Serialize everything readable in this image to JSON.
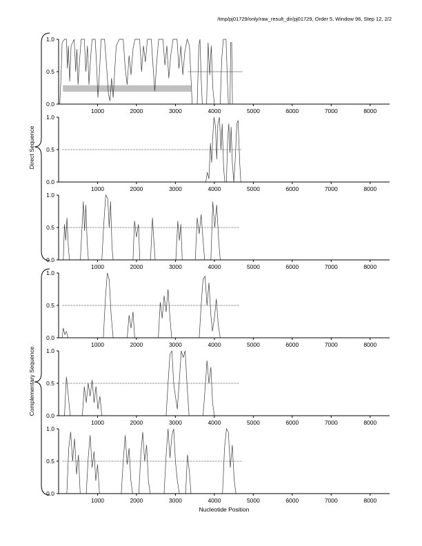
{
  "title": "/tmp/pj01729/only/raw_result_dir/pj01729, Order 5, Window 96, Step 12, 2/2",
  "xlabel": "Nucleotide Position",
  "group_labels": {
    "direct": "Direct Sequence",
    "complementary": "Complementary Sequence"
  },
  "colors": {
    "line": "#3a3a3a",
    "marker": "#9a9a9a",
    "shade": "#c0c0c0",
    "axis": "#000000"
  },
  "xticks": [
    1000,
    2000,
    3000,
    4000,
    5000,
    6000,
    7000,
    8000
  ],
  "ytick_labels": [
    {
      "v": 0.0,
      "l": "0.0"
    },
    {
      "v": 0.5,
      "l": "0.5"
    },
    {
      "v": 1.0,
      "l": "1.0"
    }
  ],
  "chart_data": [
    {
      "type": "line",
      "name": "direct-1",
      "xlim": [
        0,
        8500
      ],
      "ylim": [
        0,
        1
      ],
      "marker_step": 45,
      "marker_ranges": [
        [
          3350,
          4700
        ]
      ],
      "shaded_region": {
        "x0": 110,
        "x1": 3400,
        "y0": 0.19,
        "y1": 0.29
      },
      "points": [
        [
          30,
          0
        ],
        [
          60,
          0.4
        ],
        [
          90,
          0.95
        ],
        [
          150,
          1
        ],
        [
          200,
          1
        ],
        [
          225,
          0.55
        ],
        [
          250,
          0.9
        ],
        [
          285,
          0.35
        ],
        [
          320,
          0.9
        ],
        [
          400,
          1
        ],
        [
          440,
          0.5
        ],
        [
          470,
          0.85
        ],
        [
          500,
          0.3
        ],
        [
          540,
          0.7
        ],
        [
          580,
          1
        ],
        [
          660,
          1
        ],
        [
          700,
          0.5
        ],
        [
          740,
          0.9
        ],
        [
          780,
          0.3
        ],
        [
          820,
          0.7
        ],
        [
          860,
          1
        ],
        [
          940,
          1
        ],
        [
          980,
          0.55
        ],
        [
          1010,
          0.1
        ],
        [
          1050,
          0.5
        ],
        [
          1090,
          1
        ],
        [
          1180,
          1
        ],
        [
          1230,
          0.6
        ],
        [
          1280,
          0.15
        ],
        [
          1320,
          0.05
        ],
        [
          1360,
          0.4
        ],
        [
          1400,
          0.1
        ],
        [
          1440,
          0.5
        ],
        [
          1480,
          0.9
        ],
        [
          1560,
          1
        ],
        [
          1660,
          1
        ],
        [
          1710,
          0.55
        ],
        [
          1760,
          0.3
        ],
        [
          1810,
          0.75
        ],
        [
          1860,
          0.45
        ],
        [
          1910,
          0.85
        ],
        [
          1960,
          1
        ],
        [
          2080,
          1
        ],
        [
          2130,
          0.5
        ],
        [
          2180,
          0.9
        ],
        [
          2230,
          0.65
        ],
        [
          2280,
          1
        ],
        [
          2380,
          1
        ],
        [
          2430,
          0.55
        ],
        [
          2470,
          0.2
        ],
        [
          2520,
          0.65
        ],
        [
          2570,
          1
        ],
        [
          2680,
          1
        ],
        [
          2730,
          0.6
        ],
        [
          2780,
          0.9
        ],
        [
          2830,
          0.4
        ],
        [
          2880,
          0.75
        ],
        [
          2940,
          1
        ],
        [
          3040,
          1
        ],
        [
          3090,
          0.55
        ],
        [
          3140,
          0.9
        ],
        [
          3190,
          0.45
        ],
        [
          3240,
          0.8
        ],
        [
          3300,
          1
        ],
        [
          3360,
          0.9
        ],
        [
          3400,
          0.4
        ],
        [
          3430,
          0
        ],
        [
          3560,
          0
        ],
        [
          3600,
          0.9
        ],
        [
          3630,
          1
        ],
        [
          3660,
          0.4
        ],
        [
          3690,
          0
        ],
        [
          3800,
          0
        ],
        [
          3840,
          0.95
        ],
        [
          3880,
          0.45
        ],
        [
          3920,
          0.9
        ],
        [
          3960,
          0.25
        ],
        [
          4000,
          0
        ],
        [
          4150,
          0
        ],
        [
          4190,
          0.7
        ],
        [
          4230,
          1
        ],
        [
          4300,
          1
        ],
        [
          4330,
          0.45
        ],
        [
          4360,
          0
        ],
        [
          4400,
          0
        ],
        [
          4420,
          0.95
        ],
        [
          4445,
          0.95
        ],
        [
          4465,
          0
        ],
        [
          8500,
          0
        ]
      ]
    },
    {
      "type": "line",
      "name": "direct-2",
      "xlim": [
        0,
        8500
      ],
      "ylim": [
        0,
        1
      ],
      "marker_step": 70,
      "marker_ranges": [
        [
          120,
          4700
        ]
      ],
      "points": [
        [
          0,
          0
        ],
        [
          3780,
          0
        ],
        [
          3820,
          0.15
        ],
        [
          3860,
          0.05
        ],
        [
          3900,
          0.6
        ],
        [
          3930,
          0.3
        ],
        [
          3960,
          0.7
        ],
        [
          3990,
          1
        ],
        [
          4030,
          0.85
        ],
        [
          4060,
          0.35
        ],
        [
          4090,
          0.9
        ],
        [
          4130,
          1
        ],
        [
          4170,
          0.5
        ],
        [
          4200,
          0.9
        ],
        [
          4240,
          0.2
        ],
        [
          4270,
          0
        ],
        [
          4310,
          0
        ],
        [
          4340,
          0.65
        ],
        [
          4370,
          0.9
        ],
        [
          4400,
          0.45
        ],
        [
          4430,
          0.85
        ],
        [
          4460,
          0.3
        ],
        [
          4500,
          0
        ],
        [
          4540,
          0.4
        ],
        [
          4575,
          0.9
        ],
        [
          4610,
          0.95
        ],
        [
          4650,
          0.3
        ],
        [
          4680,
          0
        ],
        [
          8500,
          0
        ]
      ]
    },
    {
      "type": "line",
      "name": "direct-3",
      "xlim": [
        0,
        8500
      ],
      "ylim": [
        0,
        1
      ],
      "marker_step": 70,
      "marker_ranges": [
        [
          120,
          4650
        ]
      ],
      "points": [
        [
          0,
          0
        ],
        [
          120,
          0
        ],
        [
          150,
          0.55
        ],
        [
          185,
          0.3
        ],
        [
          215,
          0.65
        ],
        [
          250,
          0.2
        ],
        [
          280,
          0
        ],
        [
          560,
          0
        ],
        [
          600,
          0.5
        ],
        [
          635,
          0.9
        ],
        [
          665,
          0.45
        ],
        [
          700,
          0.85
        ],
        [
          735,
          0.25
        ],
        [
          765,
          0
        ],
        [
          1110,
          0
        ],
        [
          1160,
          0.55
        ],
        [
          1210,
          1
        ],
        [
          1260,
          0.95
        ],
        [
          1300,
          0.5
        ],
        [
          1335,
          0.9
        ],
        [
          1370,
          0.2
        ],
        [
          1400,
          0
        ],
        [
          1910,
          0
        ],
        [
          1950,
          0.6
        ],
        [
          2000,
          0.35
        ],
        [
          2050,
          0.55
        ],
        [
          2085,
          0
        ],
        [
          2360,
          0
        ],
        [
          2410,
          0.65
        ],
        [
          2445,
          0.3
        ],
        [
          2480,
          0
        ],
        [
          3010,
          0
        ],
        [
          3060,
          0.6
        ],
        [
          3100,
          0.3
        ],
        [
          3140,
          0.55
        ],
        [
          3175,
          0
        ],
        [
          3510,
          0
        ],
        [
          3560,
          0.65
        ],
        [
          3610,
          0.4
        ],
        [
          3660,
          0.7
        ],
        [
          3710,
          0.3
        ],
        [
          3750,
          0
        ],
        [
          3910,
          0
        ],
        [
          3960,
          0.9
        ],
        [
          4010,
          0.5
        ],
        [
          4060,
          0.85
        ],
        [
          4110,
          0.3
        ],
        [
          4150,
          0
        ],
        [
          8500,
          0
        ]
      ]
    },
    {
      "type": "line",
      "name": "complementary-1",
      "xlim": [
        0,
        8500
      ],
      "ylim": [
        0,
        1
      ],
      "marker_step": 70,
      "marker_ranges": [
        [
          120,
          4600
        ]
      ],
      "points": [
        [
          0,
          0
        ],
        [
          90,
          0
        ],
        [
          120,
          0.15
        ],
        [
          160,
          0.05
        ],
        [
          200,
          0.1
        ],
        [
          240,
          0
        ],
        [
          1150,
          0
        ],
        [
          1200,
          0.6
        ],
        [
          1250,
          1
        ],
        [
          1300,
          0.9
        ],
        [
          1350,
          0.35
        ],
        [
          1400,
          0
        ],
        [
          1760,
          0
        ],
        [
          1810,
          0.35
        ],
        [
          1860,
          0.15
        ],
        [
          1910,
          0.4
        ],
        [
          1955,
          0
        ],
        [
          2560,
          0
        ],
        [
          2610,
          0.55
        ],
        [
          2660,
          0.3
        ],
        [
          2710,
          0.65
        ],
        [
          2760,
          0.4
        ],
        [
          2810,
          0.75
        ],
        [
          2860,
          0.3
        ],
        [
          2905,
          0
        ],
        [
          3610,
          0
        ],
        [
          3660,
          0.5
        ],
        [
          3710,
          0.9
        ],
        [
          3760,
          0.95
        ],
        [
          3810,
          0.5
        ],
        [
          3860,
          0.85
        ],
        [
          3910,
          0.35
        ],
        [
          3950,
          0.1
        ],
        [
          4000,
          0.3
        ],
        [
          4050,
          0.6
        ],
        [
          4100,
          0.2
        ],
        [
          4150,
          0
        ],
        [
          8500,
          0
        ]
      ]
    },
    {
      "type": "line",
      "name": "complementary-2",
      "xlim": [
        0,
        8500
      ],
      "ylim": [
        0,
        1
      ],
      "marker_step": 70,
      "marker_ranges": [
        [
          120,
          4650
        ]
      ],
      "points": [
        [
          0,
          0
        ],
        [
          150,
          0
        ],
        [
          200,
          0.6
        ],
        [
          250,
          0.3
        ],
        [
          300,
          0
        ],
        [
          610,
          0
        ],
        [
          660,
          0.45
        ],
        [
          710,
          0.2
        ],
        [
          760,
          0.5
        ],
        [
          810,
          0.3
        ],
        [
          860,
          0.55
        ],
        [
          910,
          0.2
        ],
        [
          960,
          0.45
        ],
        [
          1010,
          0.1
        ],
        [
          1060,
          0.3
        ],
        [
          1110,
          0
        ],
        [
          2760,
          0
        ],
        [
          2810,
          0.5
        ],
        [
          2860,
          0.95
        ],
        [
          2910,
          1
        ],
        [
          2955,
          0.5
        ],
        [
          3000,
          0.3
        ],
        [
          3050,
          0.1
        ],
        [
          3100,
          0.55
        ],
        [
          3150,
          1
        ],
        [
          3200,
          0.9
        ],
        [
          3250,
          1
        ],
        [
          3300,
          0.45
        ],
        [
          3350,
          0
        ],
        [
          3710,
          0
        ],
        [
          3760,
          0.4
        ],
        [
          3810,
          0.85
        ],
        [
          3860,
          0.5
        ],
        [
          3910,
          0.75
        ],
        [
          3955,
          0.2
        ],
        [
          4000,
          0
        ],
        [
          8500,
          0
        ]
      ]
    },
    {
      "type": "line",
      "name": "complementary-3",
      "xlim": [
        0,
        8500
      ],
      "ylim": [
        0,
        1
      ],
      "marker_step": 70,
      "marker_ranges": [
        [
          120,
          4700
        ]
      ],
      "points": [
        [
          0,
          0
        ],
        [
          210,
          0
        ],
        [
          260,
          0.7
        ],
        [
          310,
          0.95
        ],
        [
          360,
          0.5
        ],
        [
          410,
          0.85
        ],
        [
          460,
          0.3
        ],
        [
          510,
          0.6
        ],
        [
          555,
          0
        ],
        [
          710,
          0
        ],
        [
          760,
          0.55
        ],
        [
          810,
          0.9
        ],
        [
          860,
          0.4
        ],
        [
          910,
          0.65
        ],
        [
          955,
          0.2
        ],
        [
          1000,
          0.45
        ],
        [
          1050,
          0
        ],
        [
          1610,
          0
        ],
        [
          1660,
          0.5
        ],
        [
          1710,
          0.9
        ],
        [
          1760,
          0.45
        ],
        [
          1810,
          0.7
        ],
        [
          1855,
          0.2
        ],
        [
          1900,
          0
        ],
        [
          2060,
          0
        ],
        [
          2110,
          0.6
        ],
        [
          2160,
          0.95
        ],
        [
          2210,
          0.5
        ],
        [
          2260,
          0.75
        ],
        [
          2305,
          0.2
        ],
        [
          2350,
          0
        ],
        [
          2710,
          0
        ],
        [
          2760,
          0.6
        ],
        [
          2810,
          1
        ],
        [
          2860,
          0.55
        ],
        [
          2910,
          0.9
        ],
        [
          2955,
          1
        ],
        [
          3000,
          0.5
        ],
        [
          3050,
          0.2
        ],
        [
          3100,
          0
        ],
        [
          3260,
          0
        ],
        [
          3310,
          0.6
        ],
        [
          3355,
          0.35
        ],
        [
          3400,
          0
        ],
        [
          4210,
          0
        ],
        [
          4260,
          0.7
        ],
        [
          4310,
          1
        ],
        [
          4360,
          0.95
        ],
        [
          4410,
          0.4
        ],
        [
          4460,
          0.75
        ],
        [
          4510,
          0.2
        ],
        [
          4555,
          0
        ],
        [
          8500,
          0
        ]
      ]
    }
  ]
}
